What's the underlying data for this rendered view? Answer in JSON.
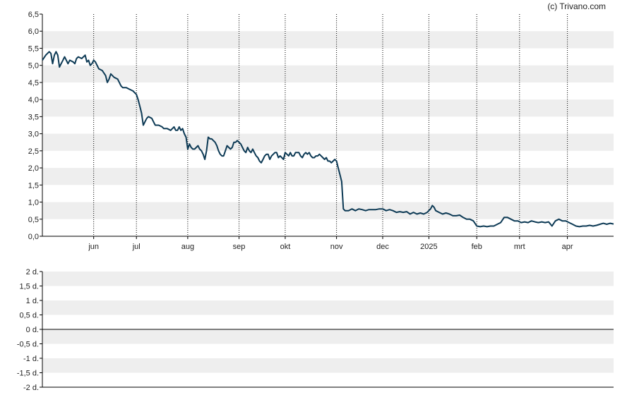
{
  "copyright": "(c) Trivano.com",
  "colors": {
    "line": "#0d3a55",
    "band": "#eeeeee",
    "axis": "#000000",
    "text": "#222222"
  },
  "chart_data": [
    {
      "type": "line",
      "ylim": [
        0,
        6.5
      ],
      "yticks": [
        "0,0",
        "0,5",
        "1,0",
        "1,5",
        "2,0",
        "2,5",
        "3,0",
        "3,5",
        "4,0",
        "4,5",
        "5,0",
        "5,5",
        "6,0",
        "6,5"
      ],
      "x_range_days": [
        0,
        334
      ],
      "month_ticks": [
        {
          "label": "jun",
          "day": 30
        },
        {
          "label": "jul",
          "day": 55
        },
        {
          "label": "aug",
          "day": 85
        },
        {
          "label": "sep",
          "day": 115
        },
        {
          "label": "okt",
          "day": 142
        },
        {
          "label": "nov",
          "day": 172
        },
        {
          "label": "dec",
          "day": 199
        },
        {
          "label": "2025",
          "day": 226
        },
        {
          "label": "feb",
          "day": 254
        },
        {
          "label": "mrt",
          "day": 279
        },
        {
          "label": "apr",
          "day": 307
        }
      ],
      "series": [
        {
          "values": [
            [
              0,
              5.15
            ],
            [
              2,
              5.3
            ],
            [
              4,
              5.4
            ],
            [
              5,
              5.35
            ],
            [
              6,
              5.05
            ],
            [
              7,
              5.3
            ],
            [
              8,
              5.4
            ],
            [
              9,
              5.3
            ],
            [
              10,
              4.95
            ],
            [
              12,
              5.15
            ],
            [
              13,
              5.25
            ],
            [
              14,
              5.15
            ],
            [
              15,
              5.05
            ],
            [
              16,
              5.15
            ],
            [
              18,
              5.1
            ],
            [
              19,
              5.05
            ],
            [
              20,
              5.2
            ],
            [
              21,
              5.25
            ],
            [
              23,
              5.2
            ],
            [
              25,
              5.3
            ],
            [
              26,
              5.1
            ],
            [
              27,
              5.15
            ],
            [
              28,
              5.0
            ],
            [
              29,
              5.05
            ],
            [
              30,
              5.15
            ],
            [
              31,
              5.1
            ],
            [
              32,
              5.0
            ],
            [
              33,
              4.9
            ],
            [
              35,
              4.85
            ],
            [
              37,
              4.7
            ],
            [
              38,
              4.5
            ],
            [
              39,
              4.6
            ],
            [
              40,
              4.75
            ],
            [
              42,
              4.65
            ],
            [
              44,
              4.6
            ],
            [
              45,
              4.5
            ],
            [
              46,
              4.4
            ],
            [
              47,
              4.35
            ],
            [
              49,
              4.35
            ],
            [
              51,
              4.3
            ],
            [
              53,
              4.25
            ],
            [
              55,
              4.15
            ],
            [
              56,
              4.0
            ],
            [
              57,
              3.8
            ],
            [
              58,
              3.6
            ],
            [
              59,
              3.25
            ],
            [
              60,
              3.35
            ],
            [
              61,
              3.45
            ],
            [
              62,
              3.5
            ],
            [
              64,
              3.45
            ],
            [
              65,
              3.35
            ],
            [
              66,
              3.25
            ],
            [
              68,
              3.25
            ],
            [
              70,
              3.2
            ],
            [
              71,
              3.15
            ],
            [
              73,
              3.15
            ],
            [
              75,
              3.1
            ],
            [
              76,
              3.15
            ],
            [
              77,
              3.2
            ],
            [
              78,
              3.1
            ],
            [
              79,
              3.1
            ],
            [
              80,
              3.2
            ],
            [
              81,
              3.1
            ],
            [
              82,
              3.15
            ],
            [
              83,
              3.0
            ],
            [
              84,
              2.9
            ],
            [
              85,
              2.55
            ],
            [
              86,
              2.7
            ],
            [
              87,
              2.6
            ],
            [
              88,
              2.55
            ],
            [
              89,
              2.55
            ],
            [
              90,
              2.6
            ],
            [
              91,
              2.65
            ],
            [
              92,
              2.55
            ],
            [
              93,
              2.5
            ],
            [
              94,
              2.4
            ],
            [
              95,
              2.25
            ],
            [
              96,
              2.5
            ],
            [
              97,
              2.9
            ],
            [
              98,
              2.85
            ],
            [
              99,
              2.85
            ],
            [
              100,
              2.8
            ],
            [
              101,
              2.75
            ],
            [
              102,
              2.65
            ],
            [
              103,
              2.5
            ],
            [
              104,
              2.4
            ],
            [
              105,
              2.35
            ],
            [
              106,
              2.35
            ],
            [
              107,
              2.5
            ],
            [
              108,
              2.65
            ],
            [
              109,
              2.6
            ],
            [
              110,
              2.55
            ],
            [
              111,
              2.6
            ],
            [
              112,
              2.75
            ],
            [
              113,
              2.75
            ],
            [
              114,
              2.8
            ],
            [
              115,
              2.75
            ],
            [
              116,
              2.7
            ],
            [
              117,
              2.6
            ],
            [
              118,
              2.5
            ],
            [
              119,
              2.45
            ],
            [
              120,
              2.6
            ],
            [
              121,
              2.5
            ],
            [
              122,
              2.45
            ],
            [
              123,
              2.55
            ],
            [
              124,
              2.45
            ],
            [
              125,
              2.35
            ],
            [
              126,
              2.3
            ],
            [
              127,
              2.2
            ],
            [
              128,
              2.15
            ],
            [
              129,
              2.25
            ],
            [
              130,
              2.35
            ],
            [
              131,
              2.4
            ],
            [
              132,
              2.4
            ],
            [
              133,
              2.25
            ],
            [
              134,
              2.35
            ],
            [
              135,
              2.4
            ],
            [
              136,
              2.45
            ],
            [
              137,
              2.45
            ],
            [
              138,
              2.3
            ],
            [
              139,
              2.35
            ],
            [
              140,
              2.3
            ],
            [
              141,
              2.25
            ],
            [
              142,
              2.45
            ],
            [
              143,
              2.4
            ],
            [
              144,
              2.35
            ],
            [
              145,
              2.45
            ],
            [
              146,
              2.35
            ],
            [
              147,
              2.35
            ],
            [
              148,
              2.45
            ],
            [
              149,
              2.45
            ],
            [
              150,
              2.45
            ],
            [
              151,
              2.35
            ],
            [
              152,
              2.3
            ],
            [
              153,
              2.4
            ],
            [
              154,
              2.45
            ],
            [
              155,
              2.4
            ],
            [
              156,
              2.45
            ],
            [
              157,
              2.35
            ],
            [
              158,
              2.3
            ],
            [
              159,
              2.3
            ],
            [
              160,
              2.35
            ],
            [
              161,
              2.35
            ],
            [
              162,
              2.4
            ],
            [
              163,
              2.35
            ],
            [
              164,
              2.3
            ],
            [
              165,
              2.25
            ],
            [
              166,
              2.3
            ],
            [
              167,
              2.2
            ],
            [
              168,
              2.2
            ],
            [
              169,
              2.15
            ],
            [
              170,
              2.2
            ],
            [
              171,
              2.25
            ],
            [
              172,
              2.2
            ],
            [
              173,
              2.0
            ],
            [
              174,
              1.8
            ],
            [
              175,
              1.6
            ],
            [
              176,
              0.8
            ],
            [
              177,
              0.75
            ],
            [
              179,
              0.75
            ],
            [
              181,
              0.8
            ],
            [
              183,
              0.75
            ],
            [
              185,
              0.8
            ],
            [
              187,
              0.78
            ],
            [
              189,
              0.75
            ],
            [
              191,
              0.78
            ],
            [
              193,
              0.78
            ],
            [
              195,
              0.78
            ],
            [
              197,
              0.8
            ],
            [
              199,
              0.8
            ],
            [
              201,
              0.75
            ],
            [
              203,
              0.78
            ],
            [
              205,
              0.75
            ],
            [
              207,
              0.7
            ],
            [
              209,
              0.72
            ],
            [
              211,
              0.7
            ],
            [
              213,
              0.72
            ],
            [
              215,
              0.65
            ],
            [
              217,
              0.7
            ],
            [
              219,
              0.65
            ],
            [
              221,
              0.68
            ],
            [
              223,
              0.65
            ],
            [
              225,
              0.7
            ],
            [
              227,
              0.8
            ],
            [
              228,
              0.9
            ],
            [
              229,
              0.85
            ],
            [
              230,
              0.75
            ],
            [
              232,
              0.7
            ],
            [
              234,
              0.65
            ],
            [
              236,
              0.68
            ],
            [
              238,
              0.65
            ],
            [
              240,
              0.6
            ],
            [
              242,
              0.6
            ],
            [
              244,
              0.62
            ],
            [
              246,
              0.55
            ],
            [
              248,
              0.5
            ],
            [
              250,
              0.5
            ],
            [
              252,
              0.45
            ],
            [
              254,
              0.3
            ],
            [
              256,
              0.28
            ],
            [
              258,
              0.3
            ],
            [
              260,
              0.28
            ],
            [
              262,
              0.3
            ],
            [
              264,
              0.3
            ],
            [
              266,
              0.35
            ],
            [
              268,
              0.4
            ],
            [
              270,
              0.55
            ],
            [
              272,
              0.55
            ],
            [
              274,
              0.5
            ],
            [
              276,
              0.45
            ],
            [
              278,
              0.45
            ],
            [
              280,
              0.4
            ],
            [
              282,
              0.42
            ],
            [
              284,
              0.4
            ],
            [
              286,
              0.45
            ],
            [
              288,
              0.42
            ],
            [
              290,
              0.4
            ],
            [
              292,
              0.42
            ],
            [
              294,
              0.4
            ],
            [
              296,
              0.42
            ],
            [
              298,
              0.3
            ],
            [
              300,
              0.45
            ],
            [
              302,
              0.5
            ],
            [
              304,
              0.45
            ],
            [
              306,
              0.45
            ],
            [
              308,
              0.4
            ],
            [
              310,
              0.35
            ],
            [
              312,
              0.3
            ],
            [
              314,
              0.28
            ],
            [
              316,
              0.3
            ],
            [
              318,
              0.3
            ],
            [
              320,
              0.32
            ],
            [
              322,
              0.3
            ],
            [
              324,
              0.32
            ],
            [
              326,
              0.35
            ],
            [
              328,
              0.38
            ],
            [
              330,
              0.35
            ],
            [
              332,
              0.38
            ],
            [
              334,
              0.36
            ]
          ]
        }
      ]
    },
    {
      "type": "line",
      "ylim": [
        -2,
        2
      ],
      "yticks": [
        "-2 d.",
        "-1,5 d.",
        "-1 d.",
        "-0,5 d.",
        "0 d.",
        "0,5 d.",
        "1 d.",
        "1,5 d.",
        "2 d."
      ],
      "series": []
    }
  ]
}
